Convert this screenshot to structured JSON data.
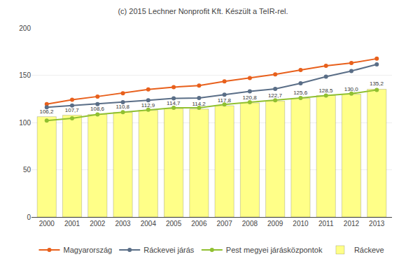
{
  "chart_data": {
    "type": "bar",
    "title": "(c) 2015 Lechner Nonprofit Kft. Készült a TeIR-rel.",
    "x": [
      2000,
      2001,
      2002,
      2003,
      2004,
      2005,
      2006,
      2007,
      2008,
      2009,
      2010,
      2011,
      2012,
      2013
    ],
    "xlim": [
      1999.4,
      2013.6
    ],
    "xticks": [
      2000,
      2001,
      2002,
      2003,
      2004,
      2005,
      2006,
      2007,
      2008,
      2009,
      2010,
      2011,
      2012,
      2013
    ],
    "ylim": [
      0,
      200
    ],
    "yticks": [
      0,
      50,
      100,
      150,
      200
    ],
    "grid": true,
    "legend": "bottom",
    "data_labels": true,
    "series": [
      {
        "name": "Magyarország",
        "type": "line",
        "color": "#E8601C",
        "marker": "circle",
        "line_style": "solid",
        "values": [
          119.5,
          124.0,
          127.5,
          131.0,
          135.0,
          137.5,
          139.0,
          143.5,
          147.0,
          151.0,
          155.5,
          160.0,
          163.0,
          167.5
        ]
      },
      {
        "name": "Ráckevei járás",
        "type": "line",
        "color": "#5A6E87",
        "marker": "circle",
        "line_style": "solid",
        "values": [
          116.2,
          118.0,
          119.5,
          121.5,
          123.5,
          125.5,
          126.0,
          129.5,
          133.0,
          135.5,
          141.5,
          148.5,
          154.5,
          161.5
        ]
      },
      {
        "name": "Pest megyei járásközpontok",
        "type": "line",
        "color": "#90C030",
        "marker": "circle",
        "line_style": "solid",
        "values": [
          102.0,
          104.5,
          108.5,
          111.0,
          113.5,
          115.5,
          115.5,
          119.0,
          121.5,
          123.5,
          126.0,
          128.5,
          130.5,
          134.5
        ]
      },
      {
        "name": "Ráckeve",
        "type": "bar",
        "color": "#FFFF88",
        "values": [
          106.2,
          107.7,
          108.6,
          110.8,
          112.9,
          114.7,
          114.2,
          117.8,
          120.8,
          122.7,
          125.6,
          128.5,
          130.0,
          135.2
        ],
        "value_labels": [
          "106,2",
          "107,7",
          "108,6",
          "110,8",
          "112,9",
          "114,7",
          "114,2",
          "117,8",
          "120,8",
          "122,7",
          "125,6",
          "128,5",
          "130,0",
          "135,2"
        ]
      }
    ]
  }
}
